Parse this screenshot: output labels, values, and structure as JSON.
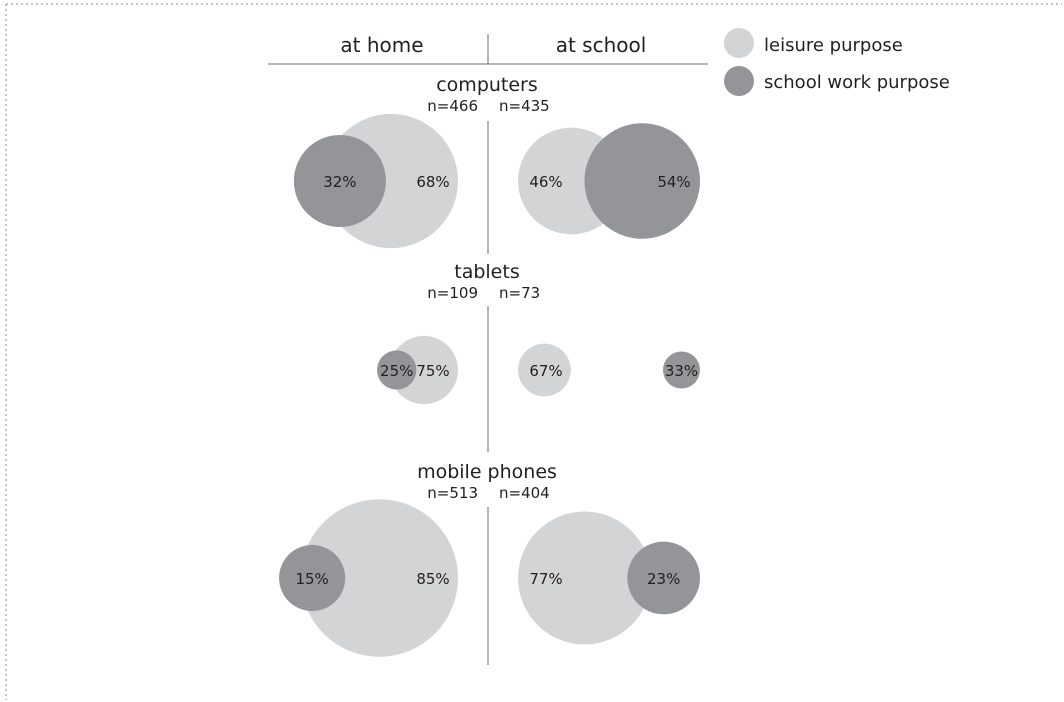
{
  "chart_data": {
    "type": "bubble",
    "columns": [
      "at home",
      "at school"
    ],
    "legend": [
      {
        "label": "leisure purpose",
        "color": "#d3d4d6"
      },
      {
        "label": "school work purpose",
        "color": "#939598"
      }
    ],
    "groups": [
      {
        "title": "computers",
        "home": {
          "n": "n=466",
          "leisure": 68,
          "school": 32,
          "leisure_label": "68%",
          "school_label": "32%"
        },
        "school": {
          "n": "n=435",
          "leisure": 46,
          "school": 54,
          "leisure_label": "46%",
          "school_label": "54%"
        }
      },
      {
        "title": "tablets",
        "home": {
          "n": "n=109",
          "leisure": 75,
          "school": 25,
          "leisure_label": "75%",
          "school_label": "25%"
        },
        "school": {
          "n": "n=73",
          "leisure": 67,
          "school": 33,
          "leisure_label": "67%",
          "school_label": "33%"
        }
      },
      {
        "title": "mobile phones",
        "home": {
          "n": "n=513",
          "leisure": 85,
          "school": 15,
          "leisure_label": "85%",
          "school_label": "15%"
        },
        "school": {
          "n": "n=404",
          "leisure": 77,
          "school": 23,
          "leisure_label": "77%",
          "school_label": "23%"
        }
      }
    ]
  }
}
